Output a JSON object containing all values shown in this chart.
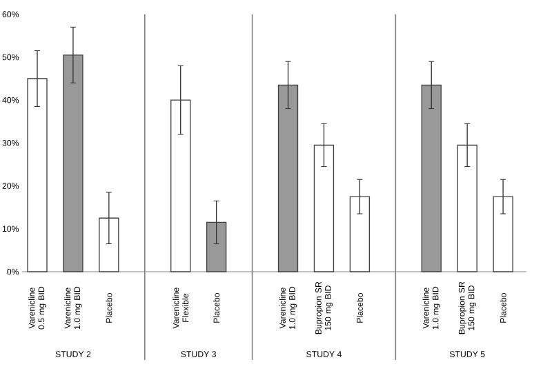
{
  "chart_data": {
    "type": "bar",
    "categories": [
      "Varenicline 0.5 mg BID",
      "Varenicline 1.0 mg BID",
      "Placebo",
      null,
      "Varenicline Flexible",
      "Placebo",
      null,
      "Varenicline 1.0 mg BID",
      "Bupropion SR 150 mg BID",
      "Placebo",
      null,
      "Varenicline 1.0 mg BID",
      "Bupropion SR 150 mg BID",
      "Placebo"
    ],
    "values": [
      45,
      50.5,
      12.5,
      null,
      40,
      11.5,
      null,
      43.5,
      29.5,
      17.5,
      null,
      43.5,
      29.5,
      17.5
    ],
    "errors": [
      6.5,
      6.5,
      6,
      null,
      8,
      5,
      null,
      5.5,
      5,
      4,
      null,
      5.5,
      5,
      4
    ],
    "colors": [
      "#ffffff",
      "#999999",
      "#ffffff",
      null,
      "#ffffff",
      "#999999",
      null,
      "#999999",
      "#ffffff",
      "#ffffff",
      null,
      "#999999",
      "#ffffff",
      "#ffffff"
    ],
    "ylim": [
      0,
      60
    ],
    "yticks": [
      {
        "value": 0,
        "label": "0%"
      },
      {
        "value": 10,
        "label": "10%"
      },
      {
        "value": 20,
        "label": "20%"
      },
      {
        "value": 30,
        "label": "30%"
      },
      {
        "value": 40,
        "label": "40%"
      },
      {
        "value": 50,
        "label": "50%"
      },
      {
        "value": 60,
        "label": "60%"
      }
    ],
    "annotations": [
      "STUDY 2",
      "STUDY 3",
      "STUDY 4",
      "STUDY 5"
    ],
    "grid": "x"
  }
}
